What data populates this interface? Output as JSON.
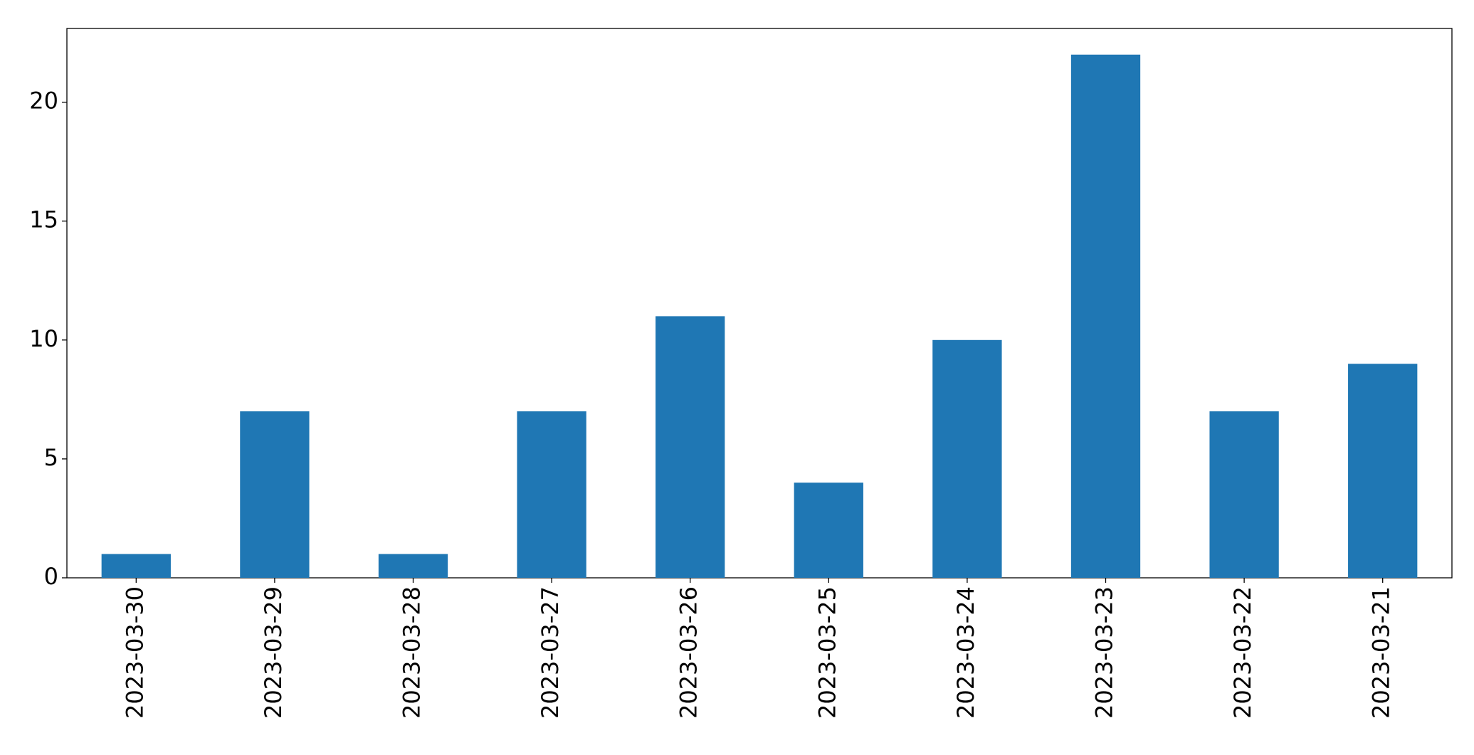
{
  "chart_data": {
    "type": "bar",
    "categories": [
      "2023-03-30",
      "2023-03-29",
      "2023-03-28",
      "2023-03-27",
      "2023-03-26",
      "2023-03-25",
      "2023-03-24",
      "2023-03-23",
      "2023-03-22",
      "2023-03-21"
    ],
    "values": [
      1,
      7,
      1,
      7,
      11,
      4,
      10,
      22,
      7,
      9
    ],
    "color": "#1f77b4",
    "ylim": [
      0,
      23.1
    ],
    "yticks": [
      0,
      5,
      10,
      15,
      20
    ],
    "grid": false
  }
}
